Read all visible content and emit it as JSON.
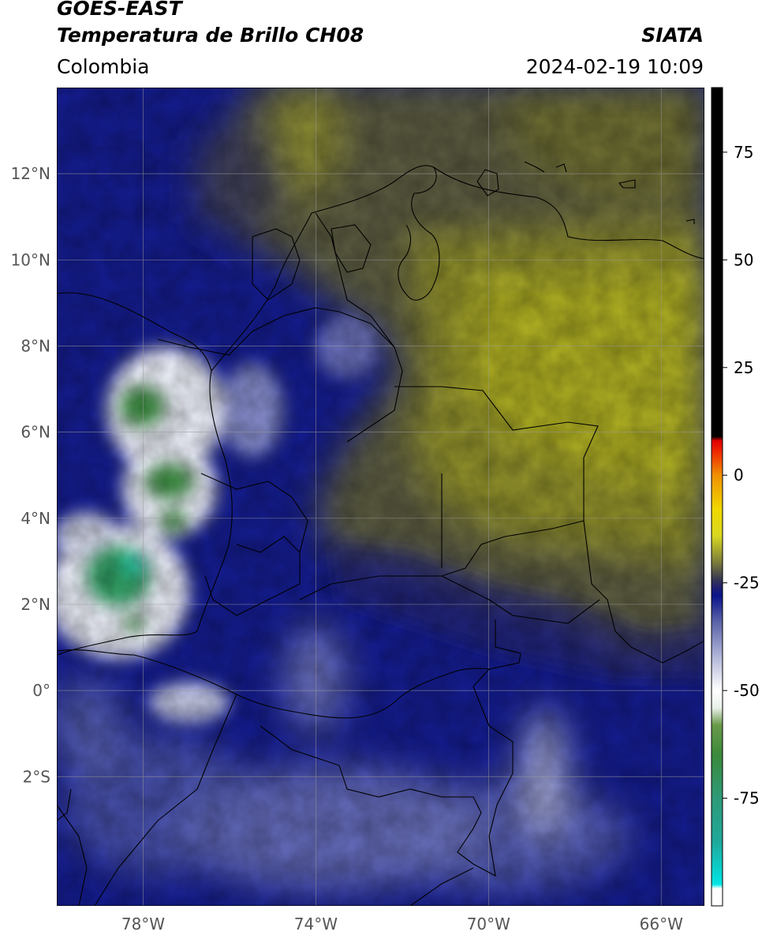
{
  "header": {
    "title_line1": "GOES-EAST",
    "title_line2": "Temperatura de Brillo CH08",
    "source": "SIATA",
    "region": "Colombia",
    "datetime": "2024-02-19 10:09"
  },
  "map": {
    "lon_range": [
      -80,
      -65
    ],
    "lat_range": [
      -5,
      14
    ],
    "lat_ticks": [
      {
        "value": 12,
        "label": "12°N"
      },
      {
        "value": 10,
        "label": "10°N"
      },
      {
        "value": 8,
        "label": "8°N"
      },
      {
        "value": 6,
        "label": "6°N"
      },
      {
        "value": 4,
        "label": "4°N"
      },
      {
        "value": 2,
        "label": "2°N"
      },
      {
        "value": 0,
        "label": "0°"
      },
      {
        "value": -2,
        "label": "2°S"
      }
    ],
    "lon_ticks": [
      {
        "value": -78,
        "label": "78°W"
      },
      {
        "value": -74,
        "label": "74°W"
      },
      {
        "value": -70,
        "label": "70°W"
      },
      {
        "value": -66,
        "label": "66°W"
      }
    ],
    "grid": true
  },
  "colorbar": {
    "min": -100,
    "max": 90,
    "ticks": [
      {
        "value": 75,
        "label": "75"
      },
      {
        "value": 50,
        "label": "50"
      },
      {
        "value": 25,
        "label": "25"
      },
      {
        "value": 0,
        "label": "0"
      },
      {
        "value": -25,
        "label": "-25"
      },
      {
        "value": -50,
        "label": "-50"
      },
      {
        "value": -75,
        "label": "-75"
      }
    ],
    "stops": [
      {
        "value": -100,
        "color": "#ffffff"
      },
      {
        "value": -96,
        "color": "#ffffff"
      },
      {
        "value": -95,
        "color": "#00e5e5"
      },
      {
        "value": -85,
        "color": "#1fa89a"
      },
      {
        "value": -75,
        "color": "#2e9a78"
      },
      {
        "value": -65,
        "color": "#3a8a3a"
      },
      {
        "value": -58,
        "color": "#6a9a4a"
      },
      {
        "value": -54,
        "color": "#e8f0e8"
      },
      {
        "value": -50,
        "color": "#ffffff"
      },
      {
        "value": -42,
        "color": "#b0b4d8"
      },
      {
        "value": -34,
        "color": "#5a62a8"
      },
      {
        "value": -28,
        "color": "#0a148a"
      },
      {
        "value": -26,
        "color": "#202070"
      },
      {
        "value": -24,
        "color": "#3a3a50"
      },
      {
        "value": -20,
        "color": "#80803a"
      },
      {
        "value": -14,
        "color": "#d8d820"
      },
      {
        "value": -8,
        "color": "#f0d800"
      },
      {
        "value": 0,
        "color": "#f09000"
      },
      {
        "value": 5,
        "color": "#f03000"
      },
      {
        "value": 8,
        "color": "#e00000"
      },
      {
        "value": 9,
        "color": "#000000"
      },
      {
        "value": 90,
        "color": "#000000"
      }
    ]
  }
}
